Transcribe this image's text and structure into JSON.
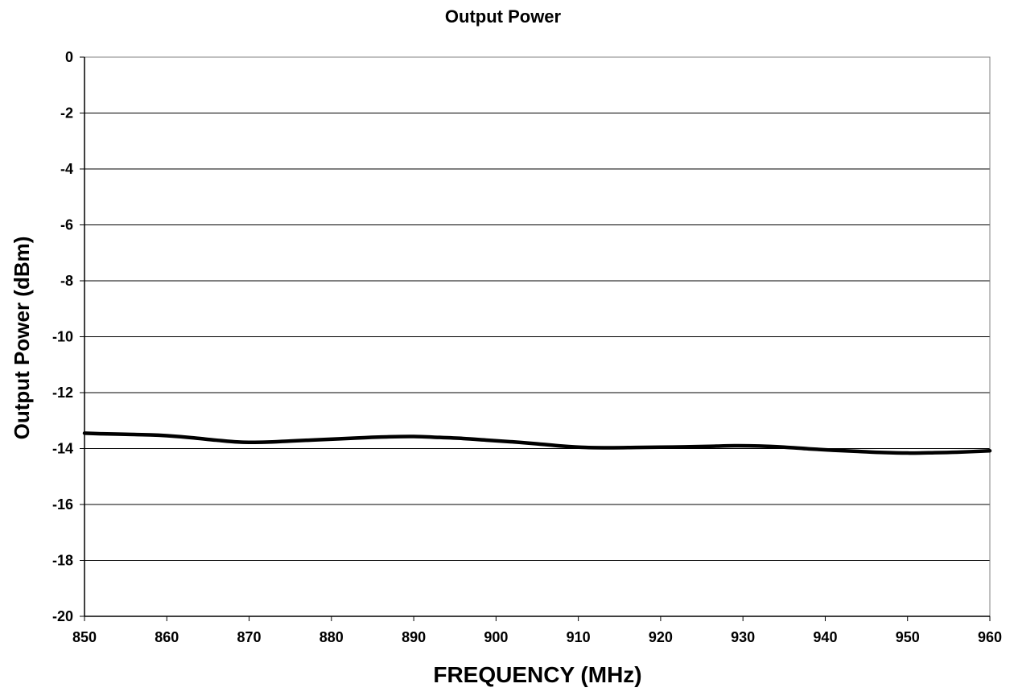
{
  "chart_data": {
    "type": "line",
    "title": "Output Power",
    "xlabel": "FREQUENCY (MHz)",
    "ylabel": "Output Power (dBm)",
    "xlim": [
      850,
      960
    ],
    "ylim": [
      -20,
      0
    ],
    "x_ticks": [
      850,
      860,
      870,
      880,
      890,
      900,
      910,
      920,
      930,
      940,
      950,
      960
    ],
    "x_tick_labels": [
      "850",
      "860",
      "870",
      "880",
      "890",
      "900",
      "910",
      "920",
      "930",
      "940",
      "950",
      "960"
    ],
    "y_ticks": [
      0,
      -2,
      -4,
      -6,
      -8,
      -10,
      -12,
      -14,
      -16,
      -18,
      -20
    ],
    "y_tick_labels": [
      "0",
      "-2",
      "-4",
      "-6",
      "-8",
      "-10",
      "-12",
      "-14",
      "-16",
      "-18",
      "-20"
    ],
    "grid": true,
    "series": [
      {
        "color": "#000000",
        "x": [
          850,
          852,
          855,
          858,
          860,
          863,
          866,
          869,
          872,
          875,
          878,
          881,
          884,
          887,
          890,
          893,
          896,
          899,
          902,
          905,
          908,
          911,
          914,
          917,
          920,
          923,
          926,
          929,
          932,
          935,
          938,
          941,
          944,
          947,
          950,
          953,
          956,
          960
        ],
        "y": [
          -13.45,
          -13.47,
          -13.49,
          -13.51,
          -13.54,
          -13.61,
          -13.7,
          -13.77,
          -13.77,
          -13.73,
          -13.69,
          -13.65,
          -13.61,
          -13.58,
          -13.57,
          -13.6,
          -13.64,
          -13.7,
          -13.76,
          -13.83,
          -13.91,
          -13.96,
          -13.97,
          -13.96,
          -13.95,
          -13.94,
          -13.92,
          -13.9,
          -13.91,
          -13.95,
          -14.01,
          -14.06,
          -14.1,
          -14.14,
          -14.16,
          -14.15,
          -14.13,
          -14.08
        ]
      }
    ]
  }
}
